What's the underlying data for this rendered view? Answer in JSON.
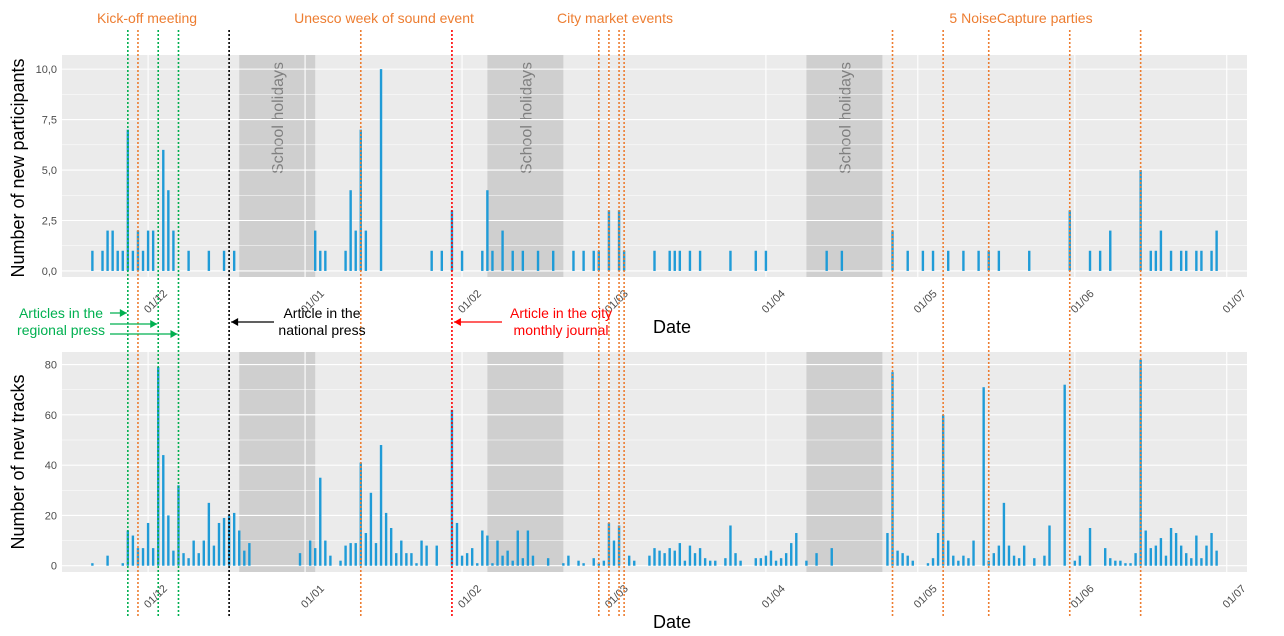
{
  "colors": {
    "panel_bg": "#ebebeb",
    "gridline": "#ffffff",
    "bar": "#1f9bd7",
    "holiday_band": "#cfcfcf",
    "event_line": "#ed7d31",
    "regional_press": "#00b050",
    "national_press": "#000000",
    "city_journal": "#ff0000",
    "tick_text": "#4d4d4d"
  },
  "annotations": {
    "kickoff": "Kick-off meeting",
    "unesco": "Unesco week of sound event",
    "market": "City market events",
    "parties": "5 NoiseCapture parties",
    "regional_press_1": "Articles in the",
    "regional_press_2": "regional press",
    "national_press_1": "Article in the",
    "national_press_2": "national press",
    "city_journal_1": "Article in the city",
    "city_journal_2": "monthly journal"
  },
  "events": {
    "orange_lines": [
      "2015-11-29",
      "2016-01-12",
      "2016-02-28",
      "2016-03-01",
      "2016-03-03",
      "2016-03-04",
      "2016-04-26",
      "2016-05-06",
      "2016-05-15",
      "2016-05-31",
      "2016-06-14"
    ],
    "green_lines": [
      "2015-11-27",
      "2015-12-03",
      "2015-12-07"
    ],
    "black_line": "2015-12-17",
    "red_line": "2016-01-30"
  },
  "chart_data": [
    {
      "type": "bar",
      "xlabel": "Date",
      "ylabel": "Number of new participants",
      "yticks": [
        "0,0",
        "2,5",
        "5,0",
        "7,5",
        "10,0"
      ],
      "ylim": [
        -0.3,
        10.7
      ],
      "xlim": [
        "2015-11-14",
        "2016-07-05"
      ],
      "xticks": [
        {
          "date": "2015-12-01",
          "label": "01/12"
        },
        {
          "date": "2016-01-01",
          "label": "01/01"
        },
        {
          "date": "2016-02-01",
          "label": "01/02"
        },
        {
          "date": "2016-03-01",
          "label": "01/03"
        },
        {
          "date": "2016-04-01",
          "label": "01/04"
        },
        {
          "date": "2016-05-01",
          "label": "01/05"
        },
        {
          "date": "2016-06-01",
          "label": "01/06"
        },
        {
          "date": "2016-07-01",
          "label": "01/07"
        }
      ],
      "shaded_periods": [
        {
          "start": "2015-12-19",
          "end": "2016-01-03",
          "label": "School holidays"
        },
        {
          "start": "2016-02-06",
          "end": "2016-02-21",
          "label": "School holidays"
        },
        {
          "start": "2016-04-09",
          "end": "2016-04-24",
          "label": "School holidays"
        }
      ],
      "points": [
        [
          "2015-11-20",
          1
        ],
        [
          "2015-11-22",
          1
        ],
        [
          "2015-11-23",
          2
        ],
        [
          "2015-11-24",
          2
        ],
        [
          "2015-11-25",
          1
        ],
        [
          "2015-11-26",
          1
        ],
        [
          "2015-11-27",
          7
        ],
        [
          "2015-11-28",
          1
        ],
        [
          "2015-11-29",
          2
        ],
        [
          "2015-11-30",
          1
        ],
        [
          "2015-12-01",
          2
        ],
        [
          "2015-12-02",
          2
        ],
        [
          "2015-12-04",
          6
        ],
        [
          "2015-12-05",
          4
        ],
        [
          "2015-12-06",
          2
        ],
        [
          "2015-12-09",
          1
        ],
        [
          "2015-12-13",
          1
        ],
        [
          "2015-12-16",
          1
        ],
        [
          "2015-12-18",
          1
        ],
        [
          "2016-01-03",
          2
        ],
        [
          "2016-01-04",
          1
        ],
        [
          "2016-01-05",
          1
        ],
        [
          "2016-01-09",
          1
        ],
        [
          "2016-01-10",
          4
        ],
        [
          "2016-01-11",
          2
        ],
        [
          "2016-01-12",
          7
        ],
        [
          "2016-01-13",
          2
        ],
        [
          "2016-01-16",
          10
        ],
        [
          "2016-01-26",
          1
        ],
        [
          "2016-01-28",
          1
        ],
        [
          "2016-01-30",
          3
        ],
        [
          "2016-02-01",
          1
        ],
        [
          "2016-02-05",
          1
        ],
        [
          "2016-02-06",
          4
        ],
        [
          "2016-02-07",
          1
        ],
        [
          "2016-02-09",
          2
        ],
        [
          "2016-02-11",
          1
        ],
        [
          "2016-02-13",
          1
        ],
        [
          "2016-02-16",
          1
        ],
        [
          "2016-02-19",
          1
        ],
        [
          "2016-02-23",
          1
        ],
        [
          "2016-02-25",
          1
        ],
        [
          "2016-02-27",
          1
        ],
        [
          "2016-02-28",
          1
        ],
        [
          "2016-03-01",
          3
        ],
        [
          "2016-03-03",
          3
        ],
        [
          "2016-03-04",
          1
        ],
        [
          "2016-03-10",
          1
        ],
        [
          "2016-03-13",
          1
        ],
        [
          "2016-03-14",
          1
        ],
        [
          "2016-03-15",
          1
        ],
        [
          "2016-03-17",
          1
        ],
        [
          "2016-03-19",
          1
        ],
        [
          "2016-03-25",
          1
        ],
        [
          "2016-03-30",
          1
        ],
        [
          "2016-04-01",
          1
        ],
        [
          "2016-04-13",
          1
        ],
        [
          "2016-04-16",
          1
        ],
        [
          "2016-04-26",
          2
        ],
        [
          "2016-04-29",
          1
        ],
        [
          "2016-05-02",
          1
        ],
        [
          "2016-05-04",
          1
        ],
        [
          "2016-05-07",
          1
        ],
        [
          "2016-05-10",
          1
        ],
        [
          "2016-05-13",
          1
        ],
        [
          "2016-05-15",
          1
        ],
        [
          "2016-05-17",
          1
        ],
        [
          "2016-05-23",
          1
        ],
        [
          "2016-05-31",
          3
        ],
        [
          "2016-06-04",
          1
        ],
        [
          "2016-06-06",
          1
        ],
        [
          "2016-06-08",
          2
        ],
        [
          "2016-06-14",
          5
        ],
        [
          "2016-06-16",
          1
        ],
        [
          "2016-06-17",
          1
        ],
        [
          "2016-06-18",
          2
        ],
        [
          "2016-06-20",
          1
        ],
        [
          "2016-06-22",
          1
        ],
        [
          "2016-06-23",
          1
        ],
        [
          "2016-06-25",
          1
        ],
        [
          "2016-06-26",
          1
        ],
        [
          "2016-06-28",
          1
        ],
        [
          "2016-06-29",
          2
        ]
      ]
    },
    {
      "type": "bar",
      "xlabel": "Date",
      "ylabel": "Number of new tracks",
      "yticks": [
        "0",
        "20",
        "40",
        "60",
        "80"
      ],
      "ylim": [
        -2.5,
        85
      ],
      "xlim": [
        "2015-11-14",
        "2016-07-05"
      ],
      "xticks": [
        {
          "date": "2015-12-01",
          "label": "01/12"
        },
        {
          "date": "2016-01-01",
          "label": "01/01"
        },
        {
          "date": "2016-02-01",
          "label": "01/02"
        },
        {
          "date": "2016-03-01",
          "label": "01/03"
        },
        {
          "date": "2016-04-01",
          "label": "01/04"
        },
        {
          "date": "2016-05-01",
          "label": "01/05"
        },
        {
          "date": "2016-06-01",
          "label": "01/06"
        },
        {
          "date": "2016-07-01",
          "label": "01/07"
        }
      ],
      "shaded_periods": [
        {
          "start": "2015-12-19",
          "end": "2016-01-03"
        },
        {
          "start": "2016-02-06",
          "end": "2016-02-21"
        },
        {
          "start": "2016-04-09",
          "end": "2016-04-24"
        }
      ],
      "points": [
        [
          "2015-11-20",
          1
        ],
        [
          "2015-11-23",
          4
        ],
        [
          "2015-11-26",
          1
        ],
        [
          "2015-11-27",
          14
        ],
        [
          "2015-11-28",
          12
        ],
        [
          "2015-11-29",
          7
        ],
        [
          "2015-11-30",
          7
        ],
        [
          "2015-12-01",
          17
        ],
        [
          "2015-12-02",
          7
        ],
        [
          "2015-12-03",
          79
        ],
        [
          "2015-12-04",
          44
        ],
        [
          "2015-12-05",
          20
        ],
        [
          "2015-12-06",
          6
        ],
        [
          "2015-12-07",
          32
        ],
        [
          "2015-12-08",
          5
        ],
        [
          "2015-12-09",
          3
        ],
        [
          "2015-12-10",
          10
        ],
        [
          "2015-12-11",
          5
        ],
        [
          "2015-12-12",
          10
        ],
        [
          "2015-12-13",
          25
        ],
        [
          "2015-12-14",
          8
        ],
        [
          "2015-12-15",
          17
        ],
        [
          "2015-12-16",
          19
        ],
        [
          "2015-12-17",
          20
        ],
        [
          "2015-12-18",
          21
        ],
        [
          "2015-12-19",
          14
        ],
        [
          "2015-12-20",
          6
        ],
        [
          "2015-12-21",
          9
        ],
        [
          "2015-12-31",
          5
        ],
        [
          "2016-01-02",
          10
        ],
        [
          "2016-01-03",
          7
        ],
        [
          "2016-01-04",
          35
        ],
        [
          "2016-01-05",
          10
        ],
        [
          "2016-01-06",
          4
        ],
        [
          "2016-01-08",
          2
        ],
        [
          "2016-01-09",
          8
        ],
        [
          "2016-01-10",
          9
        ],
        [
          "2016-01-11",
          9
        ],
        [
          "2016-01-12",
          41
        ],
        [
          "2016-01-13",
          13
        ],
        [
          "2016-01-14",
          29
        ],
        [
          "2016-01-15",
          9
        ],
        [
          "2016-01-16",
          48
        ],
        [
          "2016-01-17",
          21
        ],
        [
          "2016-01-18",
          15
        ],
        [
          "2016-01-19",
          5
        ],
        [
          "2016-01-20",
          10
        ],
        [
          "2016-01-21",
          5
        ],
        [
          "2016-01-22",
          5
        ],
        [
          "2016-01-23",
          1
        ],
        [
          "2016-01-24",
          10
        ],
        [
          "2016-01-25",
          8
        ],
        [
          "2016-01-27",
          8
        ],
        [
          "2016-01-30",
          62
        ],
        [
          "2016-01-31",
          17
        ],
        [
          "2016-02-01",
          4
        ],
        [
          "2016-02-02",
          5
        ],
        [
          "2016-02-03",
          7
        ],
        [
          "2016-02-04",
          1
        ],
        [
          "2016-02-05",
          14
        ],
        [
          "2016-02-06",
          12
        ],
        [
          "2016-02-07",
          1
        ],
        [
          "2016-02-08",
          10
        ],
        [
          "2016-02-09",
          4
        ],
        [
          "2016-02-10",
          6
        ],
        [
          "2016-02-11",
          2
        ],
        [
          "2016-02-12",
          14
        ],
        [
          "2016-02-13",
          3
        ],
        [
          "2016-02-14",
          14
        ],
        [
          "2016-02-15",
          4
        ],
        [
          "2016-02-18",
          3
        ],
        [
          "2016-02-21",
          1
        ],
        [
          "2016-02-22",
          4
        ],
        [
          "2016-02-24",
          2
        ],
        [
          "2016-02-25",
          1
        ],
        [
          "2016-02-27",
          3
        ],
        [
          "2016-02-28",
          1
        ],
        [
          "2016-02-29",
          2
        ],
        [
          "2016-03-01",
          17
        ],
        [
          "2016-03-02",
          10
        ],
        [
          "2016-03-03",
          16
        ],
        [
          "2016-03-05",
          4
        ],
        [
          "2016-03-06",
          2
        ],
        [
          "2016-03-09",
          4
        ],
        [
          "2016-03-10",
          7
        ],
        [
          "2016-03-11",
          6
        ],
        [
          "2016-03-12",
          5
        ],
        [
          "2016-03-13",
          7
        ],
        [
          "2016-03-14",
          6
        ],
        [
          "2016-03-15",
          9
        ],
        [
          "2016-03-16",
          2
        ],
        [
          "2016-03-17",
          8
        ],
        [
          "2016-03-18",
          5
        ],
        [
          "2016-03-19",
          7
        ],
        [
          "2016-03-20",
          3
        ],
        [
          "2016-03-21",
          2
        ],
        [
          "2016-03-22",
          2
        ],
        [
          "2016-03-24",
          3
        ],
        [
          "2016-03-25",
          16
        ],
        [
          "2016-03-26",
          5
        ],
        [
          "2016-03-27",
          2
        ],
        [
          "2016-03-30",
          3
        ],
        [
          "2016-03-31",
          3
        ],
        [
          "2016-04-01",
          4
        ],
        [
          "2016-04-02",
          6
        ],
        [
          "2016-04-03",
          2
        ],
        [
          "2016-04-04",
          3
        ],
        [
          "2016-04-05",
          5
        ],
        [
          "2016-04-06",
          9
        ],
        [
          "2016-04-07",
          13
        ],
        [
          "2016-04-09",
          2
        ],
        [
          "2016-04-11",
          5
        ],
        [
          "2016-04-14",
          7
        ],
        [
          "2016-04-25",
          13
        ],
        [
          "2016-04-26",
          77
        ],
        [
          "2016-04-27",
          6
        ],
        [
          "2016-04-28",
          5
        ],
        [
          "2016-04-29",
          4
        ],
        [
          "2016-04-30",
          2
        ],
        [
          "2016-05-03",
          1
        ],
        [
          "2016-05-04",
          3
        ],
        [
          "2016-05-05",
          13
        ],
        [
          "2016-05-06",
          60
        ],
        [
          "2016-05-07",
          10
        ],
        [
          "2016-05-08",
          4
        ],
        [
          "2016-05-09",
          2
        ],
        [
          "2016-05-10",
          4
        ],
        [
          "2016-05-11",
          3
        ],
        [
          "2016-05-12",
          10
        ],
        [
          "2016-05-14",
          71
        ],
        [
          "2016-05-15",
          2
        ],
        [
          "2016-05-16",
          5
        ],
        [
          "2016-05-17",
          8
        ],
        [
          "2016-05-18",
          25
        ],
        [
          "2016-05-19",
          8
        ],
        [
          "2016-05-20",
          4
        ],
        [
          "2016-05-21",
          3
        ],
        [
          "2016-05-22",
          8
        ],
        [
          "2016-05-24",
          3
        ],
        [
          "2016-05-26",
          4
        ],
        [
          "2016-05-27",
          16
        ],
        [
          "2016-05-30",
          72
        ],
        [
          "2016-06-01",
          2
        ],
        [
          "2016-06-02",
          4
        ],
        [
          "2016-06-04",
          15
        ],
        [
          "2016-06-07",
          7
        ],
        [
          "2016-06-08",
          3
        ],
        [
          "2016-06-09",
          2
        ],
        [
          "2016-06-10",
          2
        ],
        [
          "2016-06-11",
          1
        ],
        [
          "2016-06-12",
          1
        ],
        [
          "2016-06-13",
          5
        ],
        [
          "2016-06-14",
          82
        ],
        [
          "2016-06-15",
          14
        ],
        [
          "2016-06-16",
          7
        ],
        [
          "2016-06-17",
          8
        ],
        [
          "2016-06-18",
          11
        ],
        [
          "2016-06-19",
          4
        ],
        [
          "2016-06-20",
          15
        ],
        [
          "2016-06-21",
          13
        ],
        [
          "2016-06-22",
          8
        ],
        [
          "2016-06-23",
          5
        ],
        [
          "2016-06-24",
          3
        ],
        [
          "2016-06-25",
          12
        ],
        [
          "2016-06-26",
          3
        ],
        [
          "2016-06-27",
          8
        ],
        [
          "2016-06-28",
          13
        ],
        [
          "2016-06-29",
          6
        ]
      ]
    }
  ]
}
